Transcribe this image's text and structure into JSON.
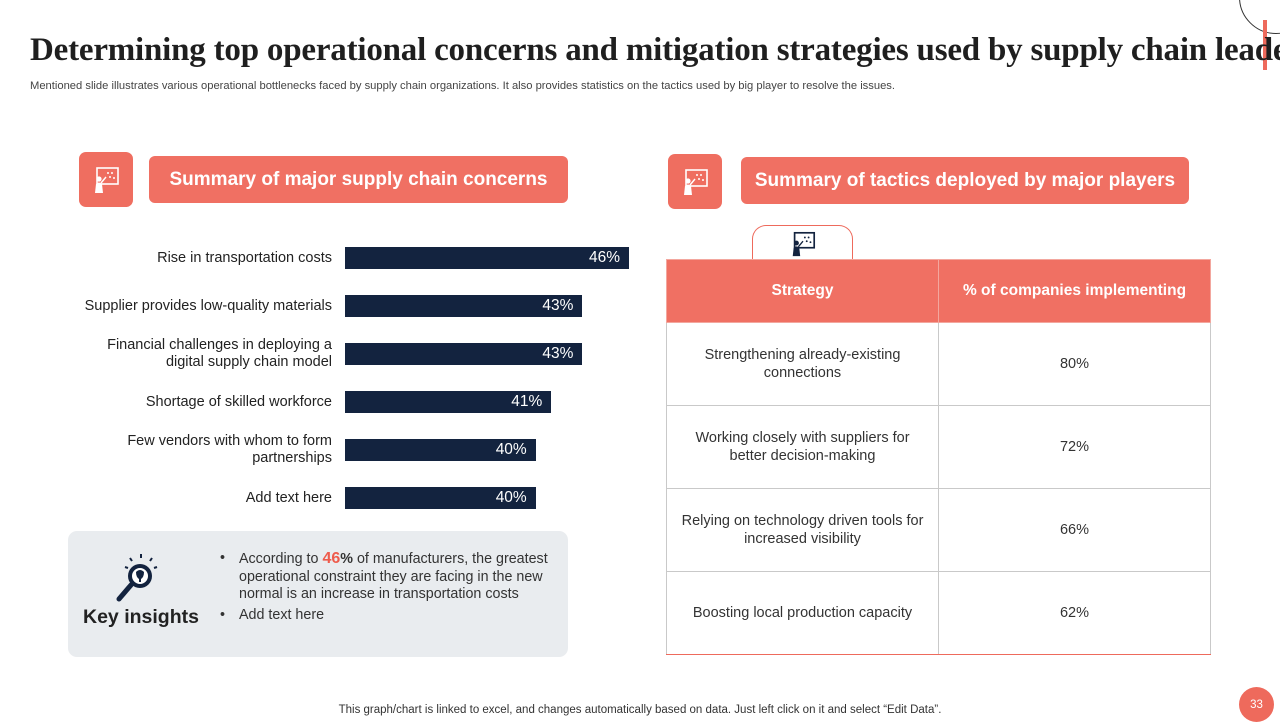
{
  "header": {
    "title": "Determining top operational concerns and mitigation strategies used by supply chain leaders",
    "subtitle": "Mentioned slide illustrates various operational bottlenecks faced by supply chain organizations. It also provides statistics on the tactics used by big player to resolve the issues."
  },
  "left_panel": {
    "heading": "Summary of major supply chain concerns",
    "icon": "presenter-board-icon"
  },
  "chart_data": {
    "type": "bar",
    "orientation": "horizontal",
    "title": "Summary of major supply chain concerns",
    "categories": [
      "Rise in transportation costs",
      "Supplier provides low-quality materials",
      "Financial challenges in deploying a digital supply chain model",
      "Shortage of skilled workforce",
      "Few vendors with whom to form partnerships",
      "Add text here"
    ],
    "values": [
      46,
      43,
      43,
      41,
      40,
      40
    ],
    "value_labels": [
      "46%",
      "43%",
      "43%",
      "41%",
      "40%",
      "40%"
    ],
    "unit": "%",
    "bar_color": "#13233f",
    "xlim": [
      35,
      46
    ]
  },
  "insights": {
    "title": "Key insights",
    "icon": "lightbulb-magnifier-icon",
    "point1": {
      "prefix": "According to ",
      "highlight": "46",
      "highlight_unit": "%",
      "suffix": " of manufacturers, the greatest operational constraint they are facing in the new normal is an increase in transportation costs"
    },
    "point2": "Add text here"
  },
  "right_panel": {
    "heading": "Summary of tactics deployed by major players",
    "icon": "presenter-board-icon",
    "tab_icon": "presenter-board-icon"
  },
  "table": {
    "headers": [
      "Strategy",
      "% of companies implementing"
    ],
    "rows": [
      {
        "strategy": "Strengthening already-existing connections",
        "percent": "80%"
      },
      {
        "strategy": "Working closely with suppliers for better decision-making",
        "percent": "72%"
      },
      {
        "strategy": "Relying on technology driven tools for increased visibility",
        "percent": "66%"
      },
      {
        "strategy": "Boosting local production capacity",
        "percent": "62%"
      }
    ]
  },
  "footer": {
    "note": "This graph/chart is linked to excel,  and changes automatically based on data. Just left click on it and select “Edit Data”.",
    "page_number": "33"
  },
  "colors": {
    "accent": "#ef6e60",
    "bar": "#13233f",
    "insight_bg": "#e9ecef"
  }
}
